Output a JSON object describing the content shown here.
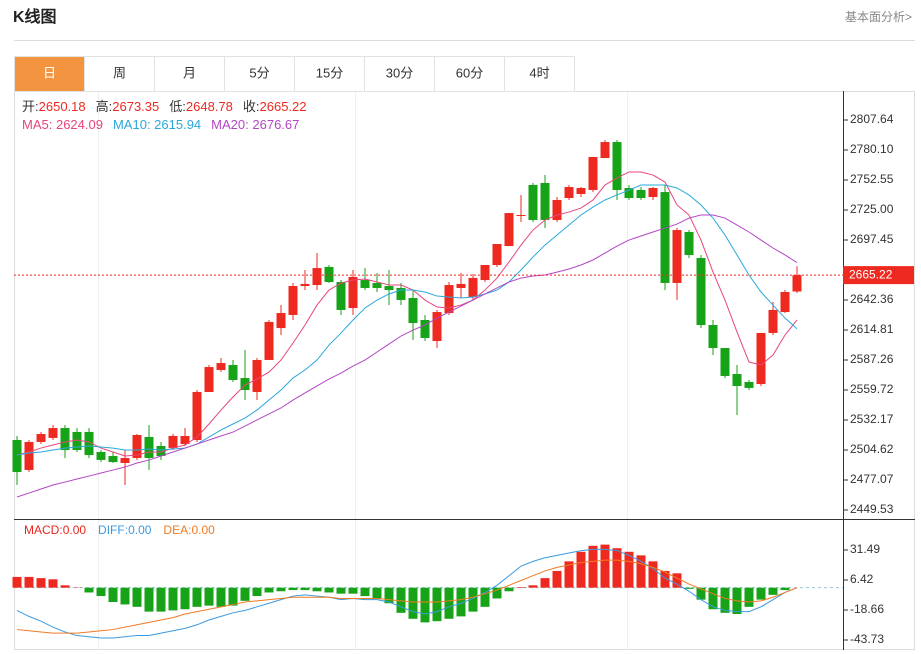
{
  "header": {
    "title": "K线图",
    "link": "基本面分析>"
  },
  "tabs": [
    "日",
    "周",
    "月",
    "5分",
    "15分",
    "30分",
    "60分",
    "4时"
  ],
  "active_tab": 0,
  "chart_data": [
    {
      "type": "candlestick",
      "ohlc_labels": [
        "开:",
        "高:",
        "低:",
        "收:"
      ],
      "separator": ": ",
      "up_color": "#ee2a20",
      "down_color": "#17a317",
      "open": [
        2513.8,
        2486.3,
        2512.0,
        2515.7,
        2524.8,
        2521.2,
        2521.2,
        2502.8,
        2499.1,
        2492.7,
        2497.3,
        2516.6,
        2508.3,
        2506.5,
        2510.1,
        2513.8,
        2557.9,
        2578.1,
        2582.7,
        2570.7,
        2557.9,
        2587.3,
        2616.6,
        2628.6,
        2655.2,
        2656.1,
        2672.7,
        2658.9,
        2635.0,
        2660.7,
        2658.0,
        2655.2,
        2653.4,
        2644.2,
        2624.0,
        2604.7,
        2630.4,
        2653.4,
        2645.1,
        2660.7,
        2674.5,
        2691.9,
        2719.5,
        2748.0,
        2749.8,
        2715.8,
        2736.0,
        2739.7,
        2743.4,
        2772.7,
        2787.4,
        2745.2,
        2743.4,
        2736.9,
        2741.5,
        2658.0,
        2704.8,
        2680.9,
        2619.4,
        2598.3,
        2574.4,
        2567.1,
        2565.2,
        2612.1,
        2631.3,
        2650.18
      ],
      "high": [
        2517.5,
        2513.8,
        2521.2,
        2527.6,
        2527.6,
        2524.8,
        2524.8,
        2504.6,
        2502.8,
        2504.6,
        2519.3,
        2527.6,
        2512.0,
        2519.3,
        2524.8,
        2559.7,
        2582.7,
        2589.1,
        2587.3,
        2596.5,
        2589.1,
        2624.0,
        2637.8,
        2658.0,
        2669.9,
        2685.5,
        2674.5,
        2660.7,
        2669.9,
        2671.7,
        2667.2,
        2669.9,
        2658.0,
        2651.5,
        2628.6,
        2633.2,
        2658.9,
        2667.2,
        2666.2,
        2674.5,
        2693.8,
        2722.2,
        2738.8,
        2749.8,
        2757.1,
        2736.9,
        2748.0,
        2746.1,
        2773.7,
        2789.3,
        2789.3,
        2748.0,
        2746.1,
        2746.1,
        2748.0,
        2708.5,
        2706.6,
        2683.7,
        2624.0,
        2598.3,
        2582.7,
        2568.9,
        2612.1,
        2640.5,
        2651.5,
        2673.35
      ],
      "low": [
        2472.5,
        2484.4,
        2510.1,
        2513.8,
        2497.3,
        2502.8,
        2497.3,
        2493.6,
        2492.7,
        2472.5,
        2495.5,
        2486.3,
        2495.5,
        2504.6,
        2508.3,
        2512.0,
        2557.9,
        2576.3,
        2567.1,
        2550.5,
        2550.5,
        2587.3,
        2610.2,
        2624.0,
        2651.5,
        2651.5,
        2658.0,
        2628.6,
        2628.6,
        2651.5,
        2649.7,
        2637.8,
        2637.8,
        2605.6,
        2604.7,
        2598.3,
        2628.6,
        2644.2,
        2642.4,
        2658.9,
        2672.7,
        2691.9,
        2714.0,
        2714.0,
        2708.5,
        2714.0,
        2734.2,
        2736.9,
        2741.5,
        2772.7,
        2734.2,
        2734.2,
        2734.2,
        2734.2,
        2651.5,
        2642.4,
        2680.9,
        2616.6,
        2591.9,
        2570.7,
        2536.8,
        2559.7,
        2563.4,
        2610.2,
        2630.4,
        2648.78
      ],
      "close": [
        2484.4,
        2512.0,
        2519.3,
        2524.8,
        2504.6,
        2504.6,
        2500.0,
        2495.5,
        2493.6,
        2497.3,
        2518.4,
        2497.3,
        2499.1,
        2517.5,
        2517.5,
        2557.9,
        2580.8,
        2584.5,
        2568.9,
        2559.7,
        2587.3,
        2622.2,
        2630.4,
        2655.2,
        2657.1,
        2671.7,
        2658.9,
        2633.2,
        2663.5,
        2653.4,
        2653.4,
        2651.5,
        2642.4,
        2621.2,
        2607.5,
        2631.3,
        2656.1,
        2657.1,
        2662.6,
        2674.5,
        2693.8,
        2722.2,
        2720.4,
        2715.8,
        2715.8,
        2734.2,
        2746.1,
        2745.2,
        2773.7,
        2787.4,
        2743.4,
        2736.0,
        2736.0,
        2745.2,
        2658.0,
        2706.6,
        2683.7,
        2619.4,
        2598.3,
        2572.6,
        2563.4,
        2561.6,
        2612.1,
        2633.2,
        2649.7,
        2665.22
      ],
      "series": [
        {
          "name": "MA5",
          "color": "#e8457e",
          "values": [
            2500.0,
            2502.8,
            2506.4,
            2509.2,
            2512.0,
            2513.8,
            2512.0,
            2506.4,
            2502.8,
            2499.1,
            2500.0,
            2502.8,
            2502.8,
            2506.4,
            2509.2,
            2516.5,
            2528.5,
            2541.3,
            2553.3,
            2564.3,
            2569.8,
            2576.2,
            2587.2,
            2602.9,
            2619.4,
            2637.7,
            2651.5,
            2657.9,
            2660.7,
            2661.6,
            2658.9,
            2656.1,
            2656.1,
            2651.5,
            2642.3,
            2635.9,
            2635.0,
            2637.7,
            2642.3,
            2651.5,
            2662.5,
            2677.2,
            2692.8,
            2706.6,
            2715.8,
            2720.4,
            2723.1,
            2726.8,
            2734.2,
            2747.9,
            2754.4,
            2759.9,
            2759.9,
            2757.1,
            2750.7,
            2729.6,
            2720.4,
            2697.4,
            2668.0,
            2642.3,
            2613.0,
            2585.4,
            2582.7,
            2591.8,
            2610.2,
            2624.09
          ]
        },
        {
          "name": "MA10",
          "color": "#2aa8dc",
          "values": [
            2500.0,
            2501.9,
            2502.8,
            2504.6,
            2506.4,
            2507.4,
            2508.3,
            2507.4,
            2506.4,
            2504.6,
            2504.6,
            2505.5,
            2504.6,
            2505.5,
            2506.4,
            2510.1,
            2516.5,
            2523.0,
            2528.5,
            2534.0,
            2541.3,
            2550.5,
            2559.7,
            2570.7,
            2578.1,
            2587.2,
            2601.0,
            2612.0,
            2624.0,
            2635.0,
            2642.3,
            2647.9,
            2651.5,
            2651.5,
            2649.7,
            2646.0,
            2645.1,
            2644.2,
            2645.1,
            2647.9,
            2651.5,
            2658.9,
            2669.9,
            2681.8,
            2692.8,
            2702.0,
            2711.2,
            2720.4,
            2727.7,
            2734.2,
            2738.8,
            2743.3,
            2747.9,
            2747.9,
            2747.9,
            2745.2,
            2738.8,
            2729.6,
            2717.6,
            2702.0,
            2683.7,
            2665.3,
            2649.7,
            2637.7,
            2625.8,
            2615.94
          ]
        },
        {
          "name": "MA20",
          "color": "#b446c6",
          "values": [
            2461.5,
            2465.1,
            2468.8,
            2472.5,
            2475.2,
            2478.0,
            2480.7,
            2483.5,
            2486.2,
            2489.0,
            2492.7,
            2495.4,
            2499.1,
            2502.8,
            2506.4,
            2510.1,
            2513.8,
            2517.5,
            2521.1,
            2526.6,
            2532.2,
            2537.7,
            2543.2,
            2550.5,
            2557.0,
            2563.4,
            2569.8,
            2575.3,
            2581.7,
            2587.2,
            2594.6,
            2601.9,
            2609.3,
            2614.8,
            2619.4,
            2625.8,
            2631.3,
            2636.8,
            2642.3,
            2647.9,
            2653.4,
            2658.9,
            2662.5,
            2664.4,
            2665.3,
            2668.0,
            2670.8,
            2674.5,
            2679.1,
            2685.5,
            2691.9,
            2697.4,
            2701.1,
            2704.8,
            2708.4,
            2712.1,
            2717.6,
            2720.4,
            2720.4,
            2717.6,
            2711.2,
            2704.8,
            2697.4,
            2690.1,
            2683.7,
            2676.67
          ]
        }
      ],
      "ylim": [
        2441.27,
        2834.27
      ],
      "yticks": [
        2807.64,
        {
          "value": 2780.1,
          "label": "2780.10"
        },
        2752.55,
        {
          "value": 2725,
          "label": "2725.00"
        },
        2697.45,
        2642.36,
        2614.81,
        2587.26,
        2559.72,
        2532.17,
        2504.62,
        2477.07,
        2449.53
      ]
    },
    {
      "type": "macd",
      "separator": ":",
      "series": [
        {
          "name": "MACD",
          "color": "#e8261f",
          "up_color": "#ee2a20",
          "down_color": "#17a317",
          "value_label": "0.00",
          "values": [
            9,
            9,
            8,
            7,
            2,
            0.3,
            -4,
            -7,
            -12,
            -14,
            -16,
            -20,
            -20,
            -19,
            -18,
            -16,
            -15,
            -16,
            -15,
            -11,
            -7,
            -4,
            -3,
            -2,
            -2,
            -3,
            -4,
            -5,
            -5,
            -7,
            -9,
            -13,
            -21,
            -26,
            -29,
            -28,
            -26,
            -24,
            -20,
            -16,
            -9,
            -3,
            0.5,
            2,
            8,
            14,
            22,
            30,
            35,
            36,
            33,
            30,
            27,
            22,
            14,
            12,
            -1,
            -10,
            -18,
            -21,
            -22,
            -16,
            -10,
            -6,
            -2,
            0
          ]
        },
        {
          "name": "DIFF",
          "color": "#3a9ae0",
          "value_label": "0.00",
          "values": [
            -19,
            -24,
            -28,
            -33,
            -37,
            -40,
            -41,
            -42,
            -42,
            -41,
            -40,
            -40,
            -38,
            -36,
            -34,
            -31,
            -27,
            -24,
            -21,
            -19,
            -16,
            -13,
            -10,
            -7,
            -6,
            -7,
            -8,
            -10,
            -9,
            -10,
            -10,
            -12,
            -16,
            -20,
            -22,
            -20,
            -16,
            -13,
            -9,
            -4,
            2,
            10,
            18,
            22,
            25,
            27,
            29,
            31,
            32,
            32,
            31,
            27,
            22,
            16,
            8,
            3,
            -3,
            -10,
            -16,
            -19,
            -20,
            -20,
            -16,
            -10,
            -4,
            0
          ]
        },
        {
          "name": "DEA",
          "color": "#f07a22",
          "value_label": "0.00",
          "values": [
            -35,
            -36,
            -37,
            -38,
            -38,
            -38,
            -37,
            -36,
            -35,
            -33,
            -31,
            -29,
            -27,
            -25,
            -22,
            -20,
            -18,
            -16,
            -14,
            -12,
            -11,
            -10,
            -9,
            -8,
            -8,
            -8,
            -8,
            -9,
            -9,
            -9,
            -9,
            -10,
            -11,
            -12,
            -12,
            -12,
            -11,
            -10,
            -8,
            -5,
            -2,
            2,
            6,
            10,
            14,
            17,
            19,
            21,
            22,
            23,
            23,
            22,
            20,
            17,
            13,
            8,
            3,
            -1,
            -5,
            -9,
            -11,
            -12,
            -11,
            -8,
            -4,
            0
          ]
        }
      ],
      "ylim": [
        -52.08,
        57.4
      ],
      "yticks": [
        31.49,
        6.42,
        -18.66,
        -43.73
      ]
    }
  ]
}
